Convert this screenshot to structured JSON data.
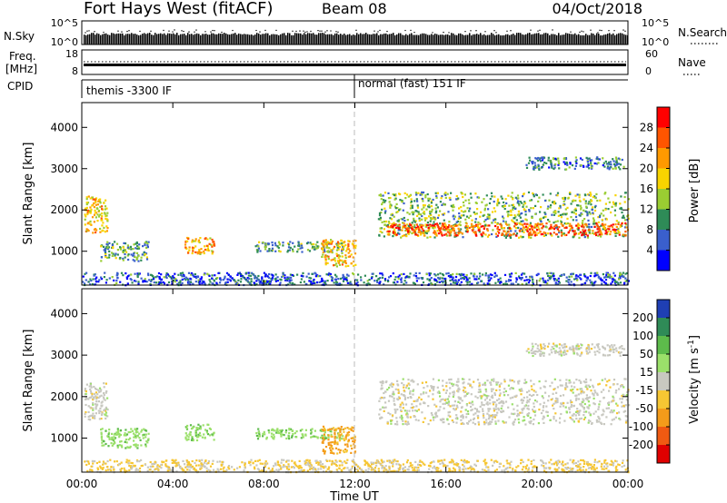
{
  "header": {
    "station": "Fort Hays West (fitACF)",
    "beam": "Beam 08",
    "date": "04/Oct/2018"
  },
  "strips": {
    "nsky_label": "N.Sky",
    "nsky_ticks": [
      "10^5",
      "10^0"
    ],
    "nsearch_label": "N.Search",
    "nsearch_ticks": [
      "10^5",
      "10^0"
    ],
    "freq_label": "Freq.",
    "freq_unit": "[MHz]",
    "freq_ticks": [
      "18",
      "8"
    ],
    "nave_label": "Nave",
    "nave_ticks": [
      "60",
      "0"
    ],
    "cpid_label": "CPID",
    "cpid_modes": [
      "themis -3300 IF",
      "normal (fast) 151 IF"
    ]
  },
  "power_panel": {
    "ylabel": "Slant Range [km]",
    "cbar_title": "Power [dB]",
    "cbar_ticks": [
      "28",
      "24",
      "20",
      "16",
      "12",
      "8",
      "4"
    ],
    "cbar_colors": [
      "#ff0000",
      "#ff5500",
      "#ff9900",
      "#f8d400",
      "#9acd32",
      "#2e8b57",
      "#3a5fcd",
      "#0000ff"
    ]
  },
  "velocity_panel": {
    "ylabel": "Slant Range [km]",
    "cbar_title": "Velocity [m s",
    "cbar_title_sup": "-1",
    "cbar_title_end": "]",
    "cbar_ticks": [
      "200",
      "100",
      "50",
      "15",
      "-15",
      "-50",
      "-100",
      "-200"
    ],
    "cbar_colors": [
      "#1f3fb4",
      "#2f8b57",
      "#5dbb4b",
      "#9be06a",
      "#c8c8c0",
      "#f6c633",
      "#f49b1a",
      "#f05a12",
      "#e00000"
    ]
  },
  "xaxis": {
    "title": "Time UT",
    "ticks": [
      "00:00",
      "04:00",
      "08:00",
      "12:00",
      "16:00",
      "20:00",
      "00:00"
    ]
  },
  "chart_data": {
    "type": "heatmap",
    "x_range_hours": [
      0,
      24
    ],
    "y_range_km": [
      180,
      4600
    ],
    "y_ticks_km": [
      1000,
      2000,
      3000,
      4000
    ],
    "mode_change_hour": 11.95,
    "power_regions": [
      {
        "x": [
          0.1,
          1.1
        ],
        "y": [
          1450,
          2350
        ],
        "value_db": 20
      },
      {
        "x": [
          0.8,
          2.9
        ],
        "y": [
          780,
          1250
        ],
        "value_db": 12
      },
      {
        "x": [
          4.5,
          5.8
        ],
        "y": [
          950,
          1350
        ],
        "value_db": 22
      },
      {
        "x": [
          7.6,
          11.5
        ],
        "y": [
          1000,
          1250
        ],
        "value_db": 12
      },
      {
        "x": [
          10.5,
          12.0
        ],
        "y": [
          650,
          1300
        ],
        "value_db": 20
      },
      {
        "x": [
          13.0,
          24.0
        ],
        "y": [
          1350,
          2450
        ],
        "value_db": 14
      },
      {
        "x": [
          13.2,
          24.0
        ],
        "y": [
          1400,
          1700
        ],
        "value_db": 26
      },
      {
        "x": [
          19.5,
          23.8
        ],
        "y": [
          3000,
          3300
        ],
        "value_db": 10
      },
      {
        "x": [
          0.0,
          24.0
        ],
        "y": [
          200,
          500
        ],
        "value_db": 8
      }
    ],
    "velocity_regions": [
      {
        "x": [
          0.1,
          1.1
        ],
        "y": [
          1450,
          2350
        ],
        "value_ms": 0
      },
      {
        "x": [
          0.8,
          2.9
        ],
        "y": [
          780,
          1250
        ],
        "value_ms": 40
      },
      {
        "x": [
          4.5,
          5.8
        ],
        "y": [
          950,
          1350
        ],
        "value_ms": 40
      },
      {
        "x": [
          7.6,
          11.5
        ],
        "y": [
          1000,
          1250
        ],
        "value_ms": 40
      },
      {
        "x": [
          10.5,
          12.0
        ],
        "y": [
          650,
          1300
        ],
        "value_ms": -60
      },
      {
        "x": [
          13.0,
          24.0
        ],
        "y": [
          1350,
          2450
        ],
        "value_ms": 0
      },
      {
        "x": [
          19.5,
          23.8
        ],
        "y": [
          3000,
          3300
        ],
        "value_ms": 0
      },
      {
        "x": [
          0.0,
          24.0
        ],
        "y": [
          200,
          500
        ],
        "value_ms": -20
      }
    ]
  }
}
